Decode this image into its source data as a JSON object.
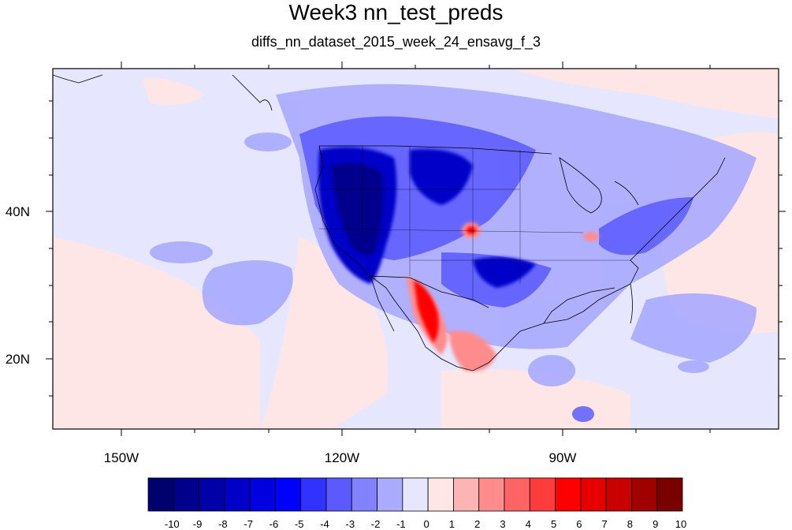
{
  "title": "Week3 nn_test_preds",
  "subtitle": "diffs_nn_dataset_2015_week_24_ensavg_f_3",
  "axes": {
    "x_ticks": [
      "150W",
      "120W",
      "90W"
    ],
    "y_ticks": [
      "40N",
      "20N"
    ]
  },
  "colorbar": {
    "labels": [
      "-10",
      "-9",
      "-8",
      "-7",
      "-6",
      "-5",
      "-4",
      "-3",
      "-2",
      "-1",
      "0",
      "1",
      "2",
      "3",
      "4",
      "5",
      "6",
      "7",
      "8",
      "9",
      "10"
    ],
    "colors": [
      "#00006e",
      "#00008c",
      "#0000a8",
      "#0000c8",
      "#0000e0",
      "#0000ff",
      "#3232ff",
      "#5a5aff",
      "#8282ff",
      "#aaaaff",
      "#e6e6ff",
      "#ffe6e6",
      "#ffb4b4",
      "#ff8c8c",
      "#ff6464",
      "#ff3c3c",
      "#ff0000",
      "#e60000",
      "#c80000",
      "#a00000",
      "#7a0000"
    ]
  },
  "chart_data": {
    "type": "heatmap",
    "title": "Week3 nn_test_preds",
    "subtitle": "diffs_nn_dataset_2015_week_24_ensavg_f_3",
    "x_ticks": [
      "150W",
      "120W",
      "90W"
    ],
    "y_ticks": [
      "40N",
      "20N"
    ],
    "xlim": [
      -159.5,
      -60.5
    ],
    "ylim": [
      11,
      60
    ],
    "colorbar_range": [
      -10,
      10
    ],
    "colorbar_labels": [
      -10,
      -9,
      -8,
      -7,
      -6,
      -5,
      -4,
      -3,
      -2,
      -1,
      0,
      1,
      2,
      3,
      4,
      5,
      6,
      7,
      8,
      9,
      10
    ]
  }
}
